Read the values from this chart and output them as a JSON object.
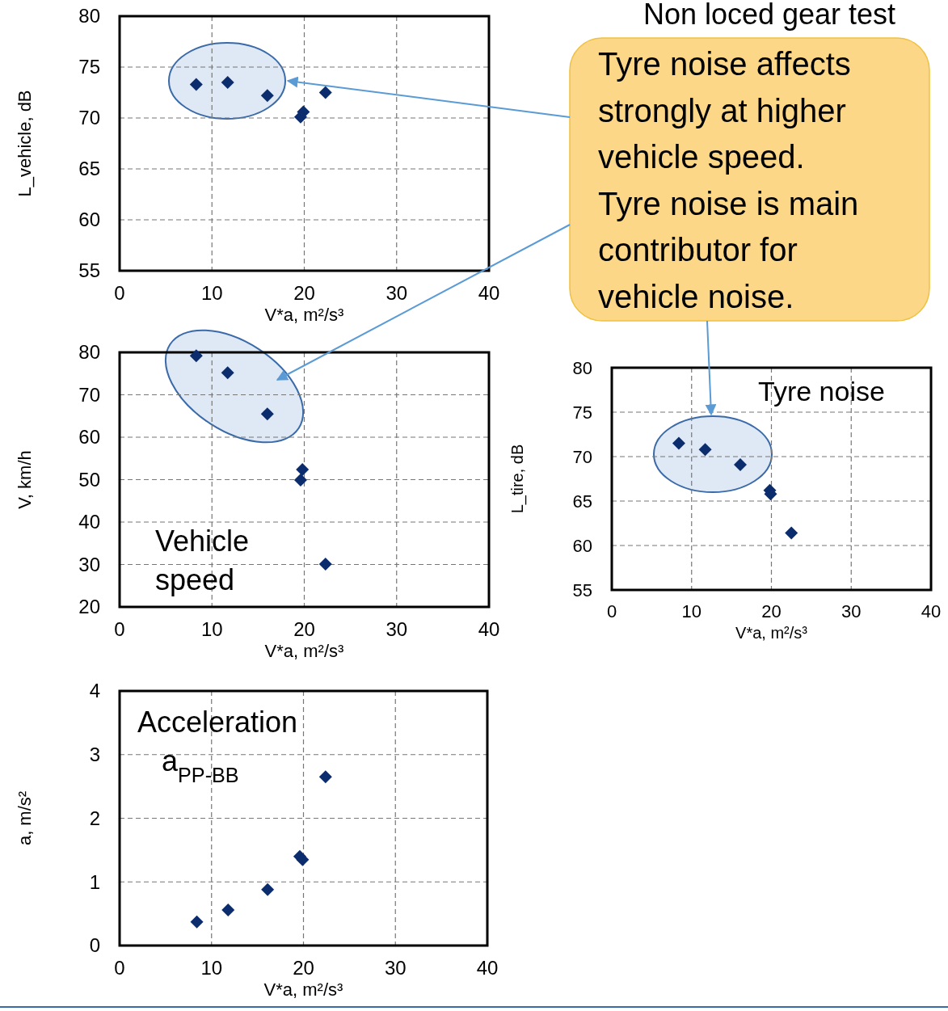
{
  "chart_data": [
    {
      "type": "scatter",
      "xlabel": "V*a, m²/s³",
      "ylabel": "L_vehicle, dB",
      "x": [
        8.3,
        11.7,
        16.0,
        19.6,
        19.9,
        22.3
      ],
      "series": [
        {
          "color": "#0b2d6e",
          "values": [
            73.3,
            73.5,
            72.2,
            70.1,
            70.6,
            72.5
          ]
        }
      ],
      "xlim": [
        0,
        40
      ],
      "ylim": [
        55,
        80
      ],
      "xticks": [
        0,
        10,
        20,
        30,
        40
      ],
      "yticks": [
        55,
        60,
        65,
        70,
        75,
        80
      ],
      "grid": true,
      "marker": "diamond"
    },
    {
      "type": "scatter",
      "xlabel": "V*a, m²/s³",
      "ylabel": "V, km/h",
      "annotations": [
        "Vehicle\nspeed"
      ],
      "x": [
        8.3,
        11.7,
        16.0,
        19.8,
        19.6,
        22.3
      ],
      "series": [
        {
          "color": "#0b2d6e",
          "values": [
            79.2,
            75.2,
            65.5,
            52.4,
            49.9,
            30.1
          ]
        }
      ],
      "xlim": [
        0,
        40
      ],
      "ylim": [
        20,
        80
      ],
      "xticks": [
        0,
        10,
        20,
        30,
        40
      ],
      "yticks": [
        20,
        30,
        40,
        50,
        60,
        70,
        80
      ],
      "grid": true,
      "marker": "diamond"
    },
    {
      "type": "scatter",
      "xlabel": "V*a, m²/s³",
      "ylabel": "L_tire, dB",
      "annotations": [
        "Tyre noise"
      ],
      "x": [
        8.4,
        11.7,
        16.1,
        19.8,
        19.9,
        22.5
      ],
      "series": [
        {
          "color": "#0b2d6e",
          "values": [
            71.5,
            70.8,
            69.1,
            66.2,
            65.8,
            61.4
          ]
        }
      ],
      "xlim": [
        0,
        40
      ],
      "ylim": [
        55,
        80
      ],
      "xticks": [
        0,
        10,
        20,
        30,
        40
      ],
      "yticks": [
        55,
        60,
        65,
        70,
        75,
        80
      ],
      "grid": true,
      "marker": "diamond"
    },
    {
      "type": "scatter",
      "xlabel": "V*a, m²/s³",
      "ylabel": "a, m/s²",
      "annotations": [
        "Acceleration\na$_{PP-BB}$"
      ],
      "x": [
        8.4,
        11.8,
        16.1,
        19.6,
        19.9,
        22.4
      ],
      "series": [
        {
          "color": "#0b2d6e",
          "values": [
            0.37,
            0.56,
            0.88,
            1.4,
            1.35,
            2.65
          ]
        }
      ],
      "xlim": [
        0,
        40
      ],
      "ylim": [
        0,
        4
      ],
      "xticks": [
        0,
        10,
        20,
        30,
        40
      ],
      "yticks": [
        0,
        1,
        2,
        3,
        4
      ],
      "grid": true,
      "marker": "diamond"
    },
    {
      "type": "other",
      "title": "Non loced gear test",
      "annotations": [
        "Tyre noise affects\nstrongly at higher\nvehicle speed.\nTyre noise is main\ncontributor for\nvehicle noise."
      ]
    }
  ]
}
